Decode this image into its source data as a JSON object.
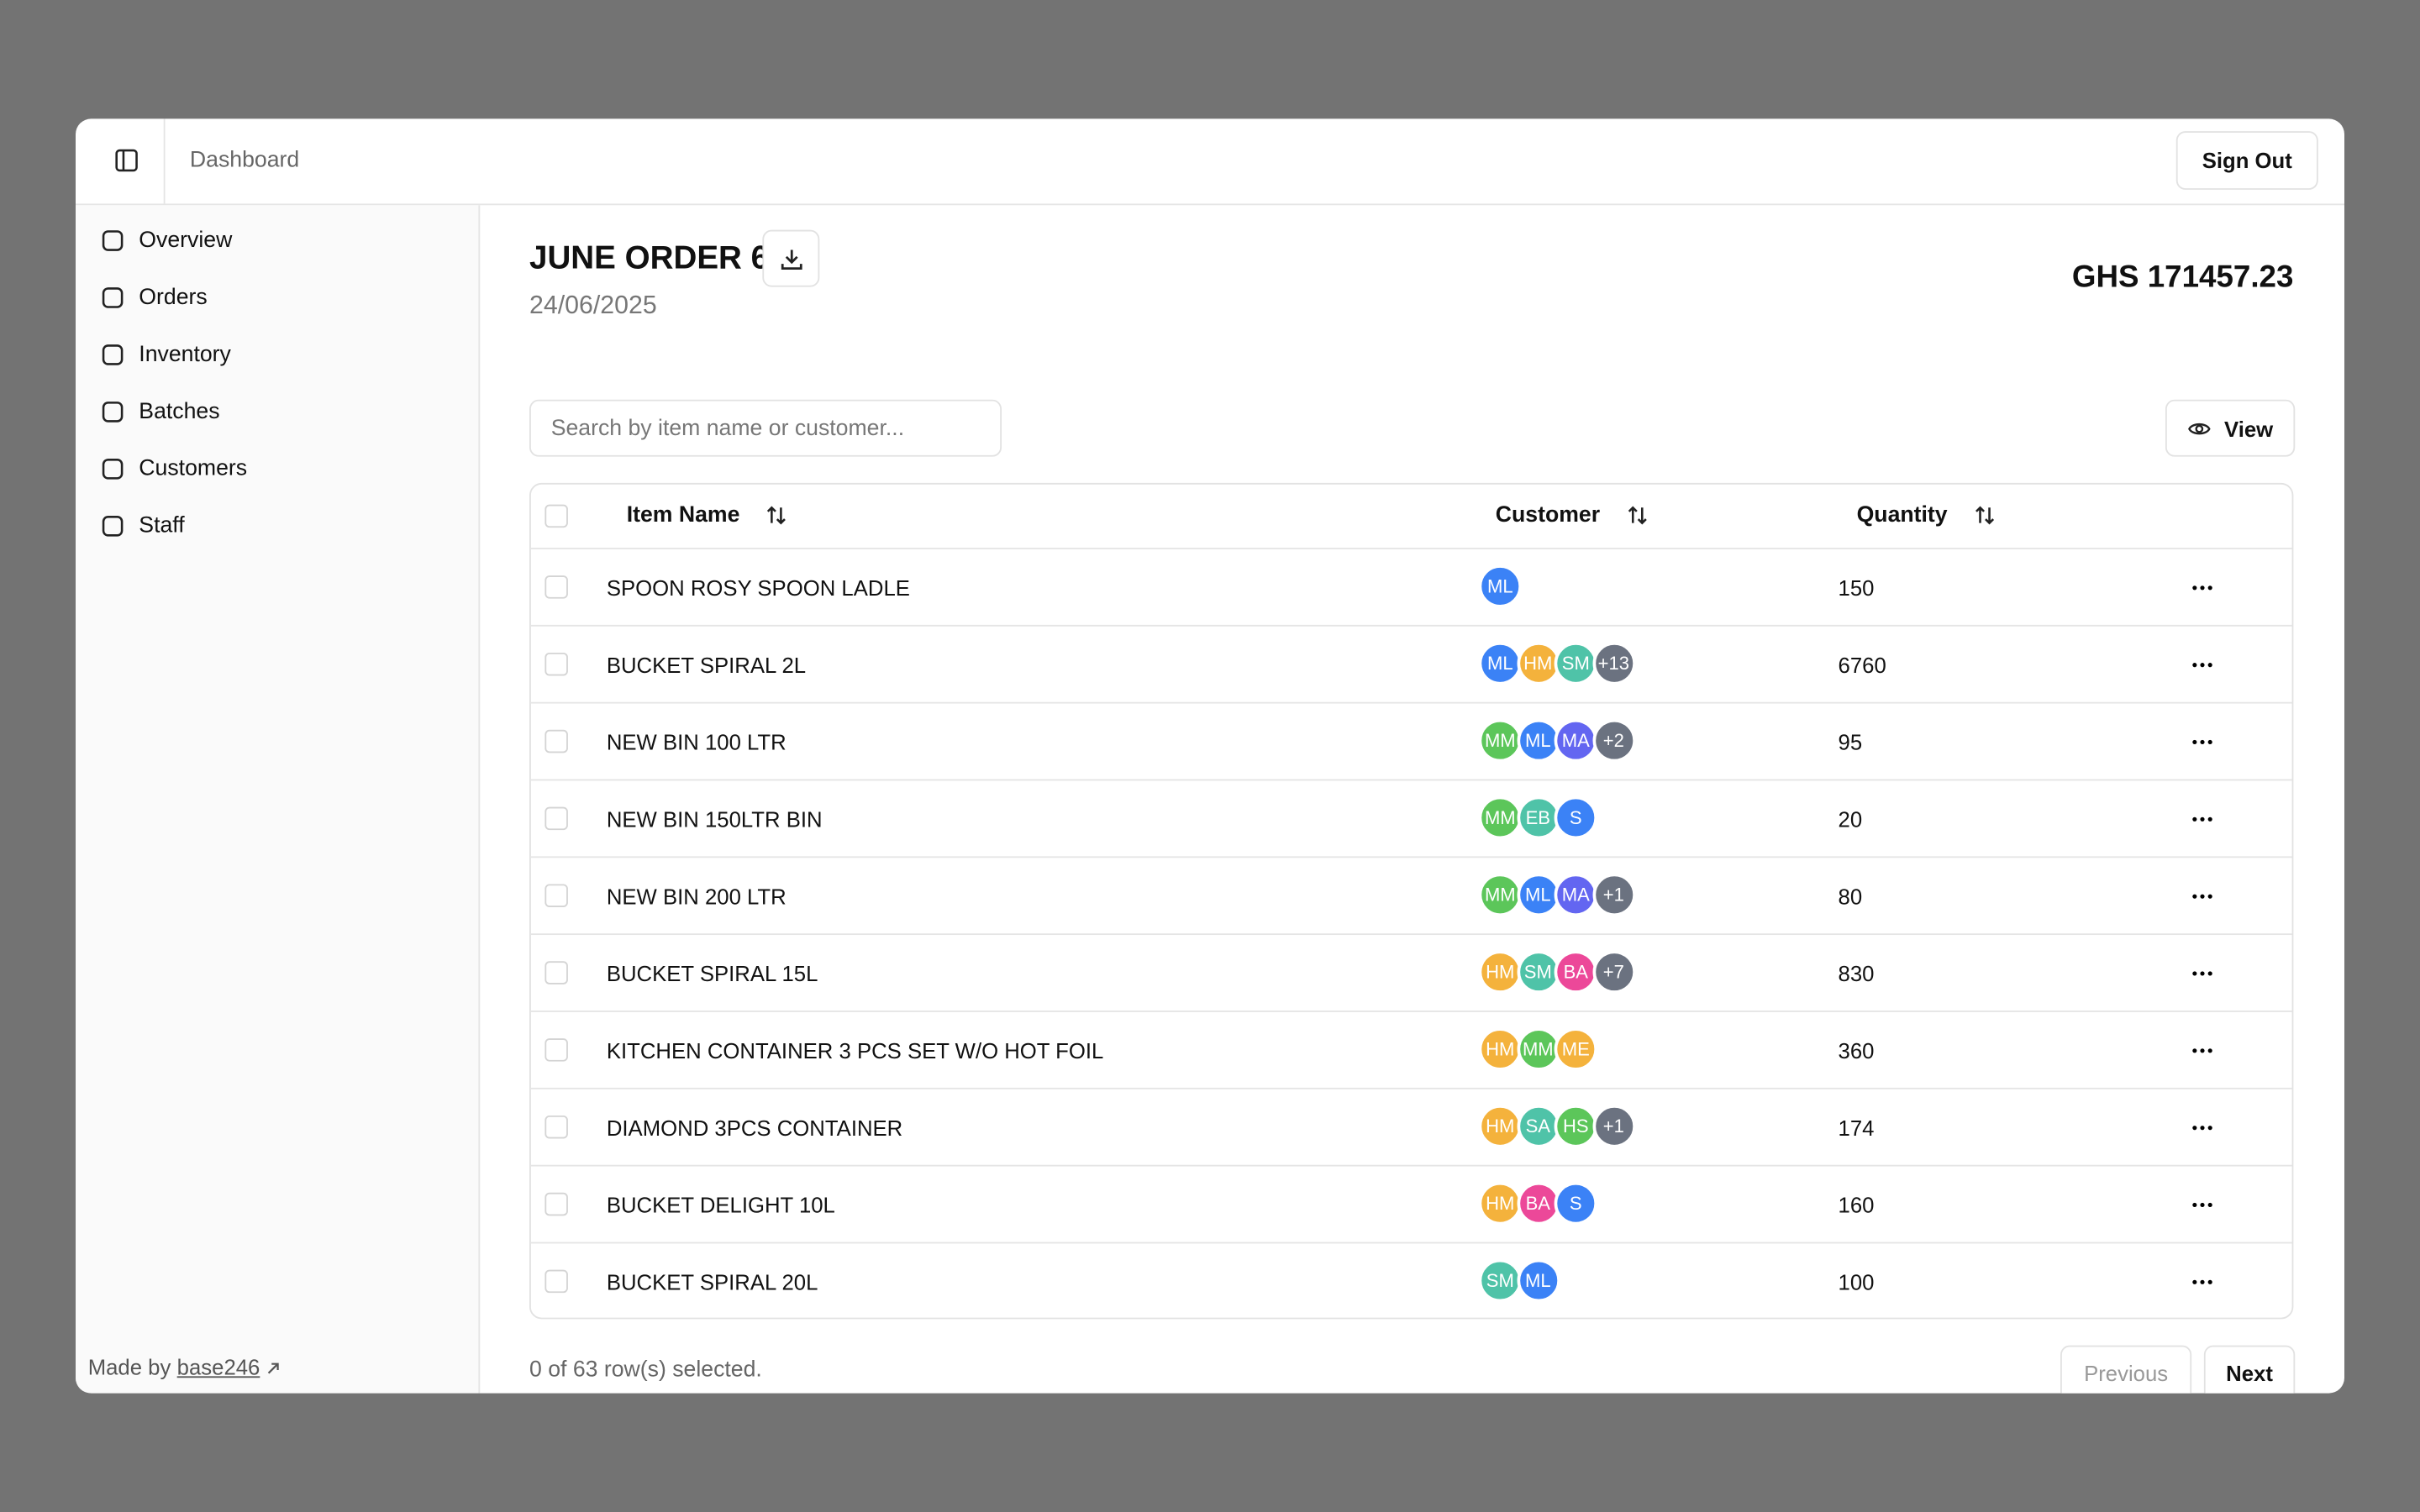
{
  "header": {
    "breadcrumb": "Dashboard",
    "sign_out": "Sign Out"
  },
  "sidebar": {
    "nav": [
      "Overview",
      "Orders",
      "Inventory",
      "Batches",
      "Customers",
      "Staff"
    ],
    "footer_prefix": "Made by",
    "footer_link": "base246"
  },
  "order": {
    "title": "JUNE ORDER 6",
    "date": "24/06/2025",
    "total": "GHS 171457.23"
  },
  "toolbar": {
    "search_placeholder": "Search by item name or customer...",
    "view": "View"
  },
  "table": {
    "columns": [
      "Item Name",
      "Customer",
      "Quantity"
    ],
    "rows": [
      {
        "item": "SPOON ROSY SPOON LADLE",
        "customers": [
          {
            "initials": "ML",
            "color": "#3b82f6"
          }
        ],
        "quantity": "150"
      },
      {
        "item": "BUCKET SPIRAL 2L",
        "customers": [
          {
            "initials": "ML",
            "color": "#3b82f6"
          },
          {
            "initials": "HM",
            "color": "#f4b23c"
          },
          {
            "initials": "SM",
            "color": "#4fc3a8"
          },
          {
            "initials": "+13",
            "color": "#6b7280"
          }
        ],
        "quantity": "6760"
      },
      {
        "item": "NEW BIN 100 LTR",
        "customers": [
          {
            "initials": "MM",
            "color": "#5cc65a"
          },
          {
            "initials": "ML",
            "color": "#3b82f6"
          },
          {
            "initials": "MA",
            "color": "#6366f1"
          },
          {
            "initials": "+2",
            "color": "#6b7280"
          }
        ],
        "quantity": "95"
      },
      {
        "item": "NEW BIN 150LTR BIN",
        "customers": [
          {
            "initials": "MM",
            "color": "#5cc65a"
          },
          {
            "initials": "EB",
            "color": "#4fc3a8"
          },
          {
            "initials": "S",
            "color": "#3b82f6"
          }
        ],
        "quantity": "20"
      },
      {
        "item": "NEW BIN 200 LTR",
        "customers": [
          {
            "initials": "MM",
            "color": "#5cc65a"
          },
          {
            "initials": "ML",
            "color": "#3b82f6"
          },
          {
            "initials": "MA",
            "color": "#6366f1"
          },
          {
            "initials": "+1",
            "color": "#6b7280"
          }
        ],
        "quantity": "80"
      },
      {
        "item": "BUCKET SPIRAL 15L",
        "customers": [
          {
            "initials": "HM",
            "color": "#f4b23c"
          },
          {
            "initials": "SM",
            "color": "#4fc3a8"
          },
          {
            "initials": "BA",
            "color": "#ec4899"
          },
          {
            "initials": "+7",
            "color": "#6b7280"
          }
        ],
        "quantity": "830"
      },
      {
        "item": "KITCHEN CONTAINER 3 PCS SET W/O HOT FOIL",
        "customers": [
          {
            "initials": "HM",
            "color": "#f4b23c"
          },
          {
            "initials": "MM",
            "color": "#5cc65a"
          },
          {
            "initials": "ME",
            "color": "#f4b23c"
          }
        ],
        "quantity": "360"
      },
      {
        "item": "DIAMOND 3PCS CONTAINER",
        "customers": [
          {
            "initials": "HM",
            "color": "#f4b23c"
          },
          {
            "initials": "SA",
            "color": "#4fc3a8"
          },
          {
            "initials": "HS",
            "color": "#5cc65a"
          },
          {
            "initials": "+1",
            "color": "#6b7280"
          }
        ],
        "quantity": "174"
      },
      {
        "item": "BUCKET DELIGHT 10L",
        "customers": [
          {
            "initials": "HM",
            "color": "#f4b23c"
          },
          {
            "initials": "BA",
            "color": "#ec4899"
          },
          {
            "initials": "S",
            "color": "#3b82f6"
          }
        ],
        "quantity": "160"
      },
      {
        "item": "BUCKET SPIRAL 20L",
        "customers": [
          {
            "initials": "SM",
            "color": "#4fc3a8"
          },
          {
            "initials": "ML",
            "color": "#3b82f6"
          }
        ],
        "quantity": "100"
      }
    ]
  },
  "footer": {
    "selection": "0 of 63 row(s) selected.",
    "previous": "Previous",
    "next": "Next"
  }
}
